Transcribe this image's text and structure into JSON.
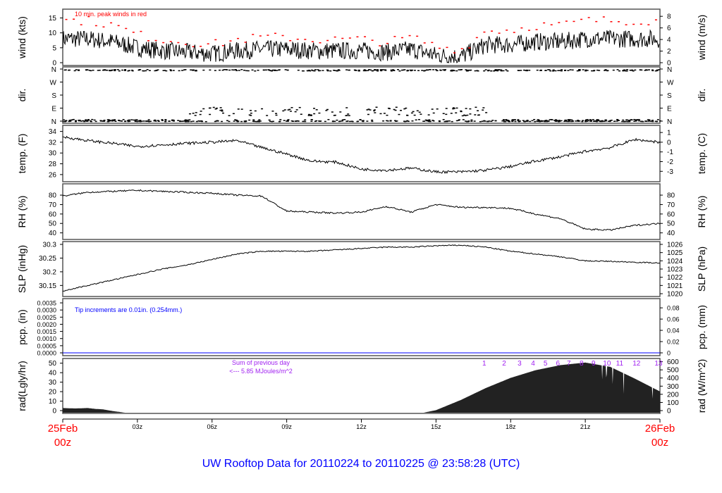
{
  "title": "UW Rooftop Data for 20110224  to  20110225 @ 23:58:28  (UTC)",
  "colors": {
    "peak": "#ff0000",
    "pcp": "#0000ff",
    "note": "#a020f0",
    "date": "#ff0000"
  },
  "chart_data": [
    {
      "type": "line",
      "id": "wind",
      "ylabel": "wind (kts)",
      "ylabel_right": "wind (m/s)",
      "ylim": [
        0,
        17
      ],
      "yticks": [
        0,
        5,
        10,
        15
      ],
      "right_lim": [
        0,
        8.75
      ],
      "right_ticks": [
        0,
        2,
        4,
        6,
        8
      ],
      "annotation": "10 min. peak winds in red",
      "hours": [
        0,
        1,
        2,
        3,
        4,
        5,
        6,
        7,
        8,
        9,
        10,
        11,
        12,
        13,
        14,
        15,
        16,
        17,
        18,
        19,
        20,
        21,
        22,
        23,
        24
      ],
      "values": [
        8,
        8,
        7,
        5,
        4,
        3.5,
        3,
        4,
        4.5,
        4.5,
        4,
        4,
        4,
        3.5,
        4.5,
        2.5,
        2,
        6,
        6,
        7,
        7,
        8,
        8,
        8,
        8
      ]
    },
    {
      "type": "scatter",
      "id": "dir",
      "ylabel": "dir.",
      "ylabel_right": "dir.",
      "ylim": [
        0,
        360
      ],
      "ytick_labels": [
        "N",
        "E",
        "S",
        "W",
        "N"
      ]
    },
    {
      "type": "line",
      "id": "temp",
      "ylabel": "temp. (F)",
      "ylabel_right": "temp. (C)",
      "ylim": [
        25.2,
        34.6
      ],
      "yticks": [
        26,
        28,
        30,
        32,
        34
      ],
      "right_ticks": [
        -3,
        -2,
        -1,
        0,
        1
      ],
      "values": [
        33,
        32.3,
        31.8,
        31.2,
        31.5,
        31.8,
        32,
        32.3,
        31,
        29.8,
        28.5,
        28.3,
        27,
        26.8,
        27.2,
        26.5,
        26.5,
        26.8,
        27.5,
        28.5,
        29.3,
        30.3,
        31,
        32.5,
        32
      ]
    },
    {
      "type": "line",
      "id": "rh",
      "ylabel": "RH (%)",
      "ylabel_right": "RH (%)",
      "ylim": [
        36,
        89
      ],
      "yticks": [
        40,
        50,
        60,
        70,
        80
      ],
      "values": [
        79,
        83,
        84,
        85,
        84,
        83,
        82,
        80,
        79,
        63,
        62,
        61,
        62,
        68,
        62,
        70,
        67,
        67,
        66,
        60,
        55,
        44,
        43,
        48,
        50
      ]
    },
    {
      "type": "line",
      "id": "slp",
      "ylabel": "SLP (inHg)",
      "ylabel_right": "SLP (hPa)",
      "ylim": [
        30.12,
        30.3
      ],
      "yticks": [
        30.15,
        30.2,
        30.25,
        30.3
      ],
      "right_lim": [
        1020,
        1026
      ],
      "right_ticks": [
        1020,
        1021,
        1022,
        1023,
        1024,
        1025,
        1026
      ],
      "values": [
        30.13,
        30.15,
        30.17,
        30.19,
        30.21,
        30.225,
        30.245,
        30.265,
        30.275,
        30.275,
        30.275,
        30.28,
        30.285,
        30.29,
        30.29,
        30.295,
        30.297,
        30.29,
        30.275,
        30.265,
        30.255,
        30.24,
        30.238,
        30.235,
        30.232
      ]
    },
    {
      "type": "line",
      "id": "pcp",
      "ylabel": "pcp. (in)",
      "ylabel_right": "pcp. (mm)",
      "ylim": [
        0,
        0.0036
      ],
      "yticks": [
        "0.0000",
        "0.0005",
        "0.0010",
        "0.0015",
        "0.0020",
        "0.0025",
        "0.0030",
        "0.0035"
      ],
      "right_lim": [
        0,
        0.0914
      ],
      "right_ticks": [
        "0",
        "0.02",
        "0.04",
        "0.06",
        "0.08"
      ],
      "annotation": "Tip increments are 0.01in. (0.254mm.)",
      "values": [
        0,
        0
      ]
    },
    {
      "type": "area",
      "id": "rad",
      "ylabel": "rad(Lgly/hr)",
      "ylabel_right": "rad (W/m^2)",
      "ylim": [
        0,
        52
      ],
      "yticks": [
        0,
        10,
        20,
        30,
        40,
        50
      ],
      "right_lim": [
        0,
        605
      ],
      "right_ticks": [
        0,
        100,
        200,
        300,
        400,
        500,
        600
      ],
      "annotation": [
        "Sum of previous day",
        "<--- 5.85 MJoules/m^2"
      ],
      "hours": [
        0,
        0.5,
        1,
        1.3,
        1.6,
        2,
        2.5,
        14.5,
        15,
        16,
        17,
        18,
        19,
        20,
        21,
        22,
        23,
        24
      ],
      "values_wm2": [
        55,
        50,
        55,
        45,
        40,
        20,
        0,
        0,
        30,
        150,
        290,
        410,
        500,
        560,
        590,
        540,
        400,
        250
      ],
      "hour_markers": [
        {
          "label": "1",
          "h": 16.94
        },
        {
          "label": "2",
          "h": 17.74
        },
        {
          "label": "3",
          "h": 18.36
        },
        {
          "label": "4",
          "h": 18.9
        },
        {
          "label": "5",
          "h": 19.4
        },
        {
          "label": "6",
          "h": 19.9
        },
        {
          "label": "7",
          "h": 20.34
        },
        {
          "label": "8",
          "h": 20.85
        },
        {
          "label": "9",
          "h": 21.33
        },
        {
          "label": "10",
          "h": 21.87
        },
        {
          "label": "11",
          "h": 22.38
        },
        {
          "label": "12",
          "h": 23.06
        },
        {
          "label": "13",
          "h": 23.94
        }
      ]
    }
  ],
  "xaxis": {
    "ticks": [
      "03z",
      "06z",
      "09z",
      "12z",
      "15z",
      "18z",
      "21z"
    ],
    "start": [
      "25Feb",
      "00z"
    ],
    "end": [
      "26Feb",
      "00z"
    ]
  }
}
